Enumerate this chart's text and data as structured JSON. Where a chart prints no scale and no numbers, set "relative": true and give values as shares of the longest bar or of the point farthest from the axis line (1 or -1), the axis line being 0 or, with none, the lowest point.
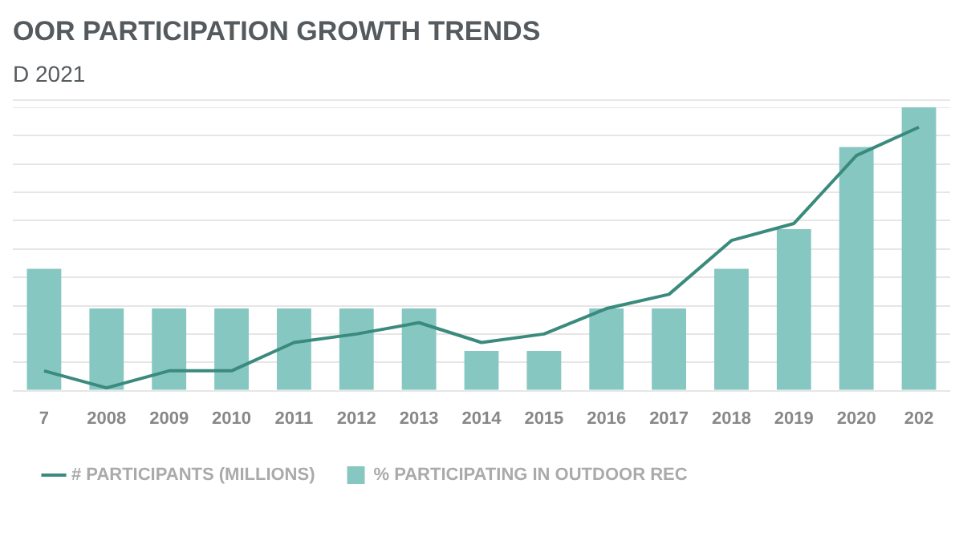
{
  "chart_data": {
    "type": "bar",
    "title": "OOR PARTICIPATION GROWTH TRENDS",
    "subtitle": "D 2021",
    "relative": true,
    "grid": "y",
    "legend": "bottom left",
    "categories": [
      "7",
      "2008",
      "2009",
      "2010",
      "2011",
      "2012",
      "2013",
      "2014",
      "2015",
      "2016",
      "2017",
      "2018",
      "2019",
      "2020",
      "202"
    ],
    "series": [
      {
        "name": "% PARTICIPATING IN OUTDOOR REC",
        "color": "#86c7c1",
        "values": [
          0.43,
          0.29,
          0.29,
          0.29,
          0.29,
          0.29,
          0.29,
          0.14,
          0.14,
          0.29,
          0.29,
          0.43,
          0.57,
          0.86,
          1
        ]
      },
      {
        "name": "# PARTICIPANTS (MILLIONS)",
        "type": "line",
        "color": "#3b8a7e",
        "values": [
          0.07,
          0.01,
          0.07,
          0.07,
          0.17,
          0.2,
          0.24,
          0.17,
          0.2,
          0.29,
          0.34,
          0.53,
          0.59,
          0.83,
          0.93
        ]
      }
    ]
  }
}
